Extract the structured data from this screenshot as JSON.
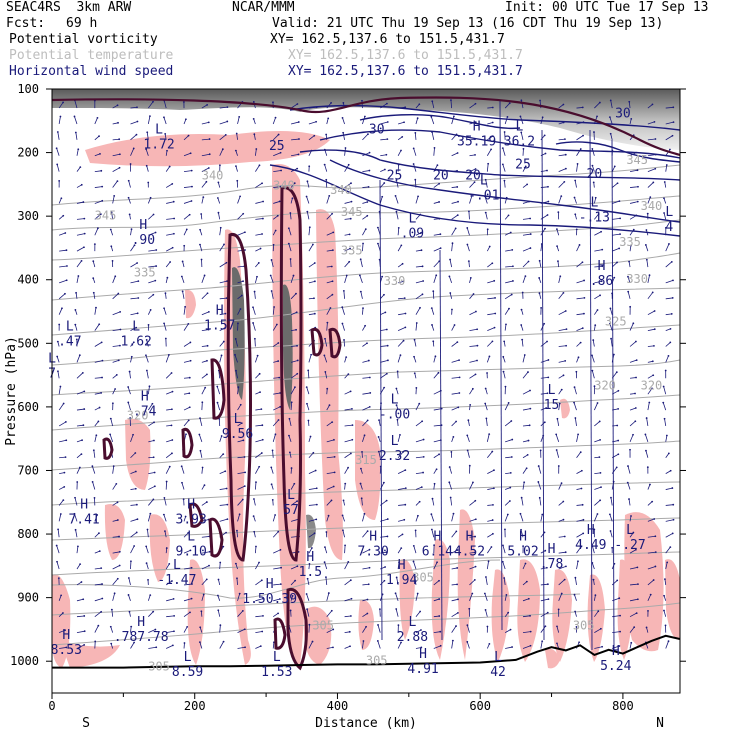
{
  "header": {
    "model": "SEAC4RS  3km ARW",
    "org": "NCAR/MMM",
    "init": "Init: 00 UTC Tue 17 Sep 13",
    "fcst_label": "Fcst:",
    "fcst_value": "69 h",
    "valid": "Valid: 21 UTC Thu 19 Sep 13 (16 CDT Thu 19 Sep 13)"
  },
  "fields": [
    {
      "label": "Potential vorticity",
      "xy": "XY= 162.5,137.6 to 151.5,431.7",
      "color": "#000000"
    },
    {
      "label": "Potential temperature",
      "xy": "XY= 162.5,137.6 to 151.5,431.7",
      "color": "#bdbdbd"
    },
    {
      "label": "Horizontal wind speed",
      "xy": "XY= 162.5,137.6 to 151.5,431.7",
      "color": "#1a1a7a"
    }
  ],
  "colors": {
    "pv_shade": "#f7b6b6",
    "pv_contour": "#4a0d2e",
    "theta": "#aaaaaa",
    "wind_contour": "#1a1a7a",
    "vector": "#1a1a7a",
    "terrain": "#000000",
    "upper_gray": "#8c8c8c"
  },
  "chart_data": {
    "type": "cross-section",
    "title": "",
    "xlabel": "Distance (km)",
    "ylabel": "Pressure (hPa)",
    "xlim": [
      0,
      880
    ],
    "ylim": [
      1050,
      100
    ],
    "x_ticks": [
      0,
      200,
      400,
      600,
      800
    ],
    "y_ticks": [
      100,
      200,
      300,
      400,
      500,
      600,
      700,
      800,
      900,
      1000
    ],
    "endpoint_labels": {
      "left": "S",
      "right": "N"
    },
    "theta_labels": [
      {
        "x": 75,
        "p": 305,
        "text": "345"
      },
      {
        "x": 225,
        "p": 242,
        "text": "340"
      },
      {
        "x": 325,
        "p": 258,
        "text": "340"
      },
      {
        "x": 420,
        "p": 300,
        "text": "345"
      },
      {
        "x": 405,
        "p": 265,
        "text": "340"
      },
      {
        "x": 840,
        "p": 290,
        "text": "340"
      },
      {
        "x": 820,
        "p": 218,
        "text": "345"
      },
      {
        "x": 130,
        "p": 395,
        "text": "335"
      },
      {
        "x": 420,
        "p": 360,
        "text": "335"
      },
      {
        "x": 810,
        "p": 347,
        "text": "335"
      },
      {
        "x": 480,
        "p": 408,
        "text": "330"
      },
      {
        "x": 820,
        "p": 405,
        "text": "330"
      },
      {
        "x": 790,
        "p": 472,
        "text": "325"
      },
      {
        "x": 775,
        "p": 573,
        "text": "320"
      },
      {
        "x": 840,
        "p": 573,
        "text": "320"
      },
      {
        "x": 120,
        "p": 620,
        "text": "320"
      },
      {
        "x": 440,
        "p": 690,
        "text": "315"
      },
      {
        "x": 520,
        "p": 875,
        "text": "305"
      },
      {
        "x": 455,
        "p": 1005,
        "text": "305"
      },
      {
        "x": 150,
        "p": 1015,
        "text": "305"
      },
      {
        "x": 745,
        "p": 950,
        "text": "305"
      },
      {
        "x": 380,
        "p": 950,
        "text": "305"
      }
    ],
    "wind_speed_labels": [
      {
        "x": 455,
        "p": 170,
        "text": "30"
      },
      {
        "x": 800,
        "p": 145,
        "text": "30"
      },
      {
        "x": 480,
        "p": 242,
        "text": "25"
      },
      {
        "x": 315,
        "p": 196,
        "text": "25"
      },
      {
        "x": 660,
        "p": 225,
        "text": "25"
      },
      {
        "x": 545,
        "p": 242,
        "text": "20"
      },
      {
        "x": 590,
        "p": 242,
        "text": "20"
      },
      {
        "x": 760,
        "p": 240,
        "text": "20"
      }
    ],
    "extrema": [
      {
        "type": "L",
        "x": 150,
        "p": 170,
        "value": "1.72"
      },
      {
        "type": "H",
        "x": 128,
        "p": 320,
        "value": ".90"
      },
      {
        "type": "H",
        "x": 595,
        "p": 165,
        "value": "35.19"
      },
      {
        "type": "L",
        "x": 655,
        "p": 165,
        "value": "36.2"
      },
      {
        "type": "L",
        "x": 605,
        "p": 250,
        "value": "-.01"
      },
      {
        "type": "L",
        "x": 760,
        "p": 285,
        "value": "-.13"
      },
      {
        "type": "L",
        "x": 865,
        "p": 300,
        "value": "4"
      },
      {
        "type": "L",
        "x": 505,
        "p": 310,
        "value": ".09"
      },
      {
        "type": "H",
        "x": 770,
        "p": 385,
        "value": ".86"
      },
      {
        "type": "L",
        "x": 25,
        "p": 480,
        "value": ".47"
      },
      {
        "type": "L",
        "x": 118,
        "p": 480,
        "value": "1.62"
      },
      {
        "type": "H",
        "x": 235,
        "p": 455,
        "value": "1.57"
      },
      {
        "type": "L",
        "x": 0,
        "p": 530,
        "value": "7"
      },
      {
        "type": "H",
        "x": 130,
        "p": 590,
        "value": ".74"
      },
      {
        "type": "L",
        "x": 480,
        "p": 595,
        "value": "-.00"
      },
      {
        "type": "L",
        "x": 700,
        "p": 580,
        "value": "15"
      },
      {
        "type": "L",
        "x": 480,
        "p": 660,
        "value": "2.32"
      },
      {
        "type": "L",
        "x": 260,
        "p": 625,
        "value": "9.56"
      },
      {
        "type": "H",
        "x": 45,
        "p": 760,
        "value": "7.41"
      },
      {
        "type": "H",
        "x": 195,
        "p": 760,
        "value": "3.93"
      },
      {
        "type": "L",
        "x": 335,
        "p": 745,
        "value": "57"
      },
      {
        "type": "L",
        "x": 195,
        "p": 810,
        "value": "9.10"
      },
      {
        "type": "H",
        "x": 450,
        "p": 810,
        "value": "7.30"
      },
      {
        "type": "H",
        "x": 540,
        "p": 810,
        "value": "6.14"
      },
      {
        "type": "H",
        "x": 585,
        "p": 810,
        "value": "4.52"
      },
      {
        "type": "H",
        "x": 660,
        "p": 810,
        "value": "5.02"
      },
      {
        "type": "H",
        "x": 755,
        "p": 800,
        "value": "4.49"
      },
      {
        "type": "L",
        "x": 810,
        "p": 800,
        "value": "-.27"
      },
      {
        "type": "H",
        "x": 700,
        "p": 830,
        "value": ".78"
      },
      {
        "type": "L",
        "x": 175,
        "p": 855,
        "value": "-1.47"
      },
      {
        "type": "H",
        "x": 490,
        "p": 855,
        "value": "1.94"
      },
      {
        "type": "H",
        "x": 362,
        "p": 842,
        "value": "1.5"
      },
      {
        "type": "H",
        "x": 305,
        "p": 885,
        "value": "1.50.39"
      },
      {
        "type": "L",
        "x": 505,
        "p": 945,
        "value": "2.88"
      },
      {
        "type": "H",
        "x": 20,
        "p": 965,
        "value": "8.53"
      },
      {
        "type": "H",
        "x": 125,
        "p": 945,
        "value": ".787.78"
      },
      {
        "type": "L",
        "x": 190,
        "p": 1000,
        "value": "8.59"
      },
      {
        "type": "L",
        "x": 315,
        "p": 1000,
        "value": "1.53"
      },
      {
        "type": "H",
        "x": 520,
        "p": 995,
        "value": "4.91"
      },
      {
        "type": "L",
        "x": 625,
        "p": 1000,
        "value": "42"
      },
      {
        "type": "H",
        "x": 790,
        "p": 990,
        "value": "5.24"
      }
    ],
    "terrain_km": [
      0,
      50,
      100,
      150,
      200,
      250,
      300,
      350,
      400,
      450,
      500,
      550,
      600,
      650,
      680,
      700,
      720,
      740,
      760,
      780,
      800,
      820,
      840,
      860,
      880
    ],
    "terrain_hPa": [
      1010,
      1010,
      1010,
      1009,
      1008,
      1008,
      1007,
      1006,
      1005,
      1005,
      1004,
      1003,
      1002,
      998,
      985,
      978,
      983,
      975,
      990,
      982,
      988,
      978,
      968,
      960,
      965
    ]
  }
}
